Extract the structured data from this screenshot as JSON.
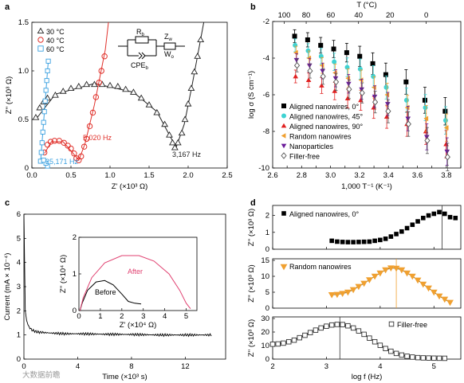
{
  "watermark": "大数据前瞻",
  "chart_data": [
    {
      "panel": "a",
      "type": "scatter",
      "xlabel": "Z' (×10³ Ω)",
      "ylabel": "Z'' (×10³ Ω)",
      "xlim": [
        0,
        2.5
      ],
      "ylim": [
        0,
        1.5
      ],
      "xticks": [
        "0.0",
        "0.5",
        "1.0",
        "1.5",
        "2.0",
        "2.5"
      ],
      "yticks": [
        "0",
        "0.5",
        "1.0",
        "1.5"
      ],
      "circuit_labels": [
        "R",
        "b",
        "Z",
        "w",
        "W",
        "o",
        "CPE",
        "b"
      ],
      "series": [
        {
          "name": "30 °C",
          "marker": "triangle",
          "color": "#222222",
          "points": [
            [
              0.05,
              0.52
            ],
            [
              0.1,
              0.62
            ],
            [
              0.15,
              0.68
            ],
            [
              0.2,
              0.72
            ],
            [
              0.3,
              0.75
            ],
            [
              0.4,
              0.79
            ],
            [
              0.5,
              0.82
            ],
            [
              0.6,
              0.84
            ],
            [
              0.7,
              0.86
            ],
            [
              0.8,
              0.86
            ],
            [
              0.9,
              0.86
            ],
            [
              1.0,
              0.85
            ],
            [
              1.1,
              0.84
            ],
            [
              1.2,
              0.81
            ],
            [
              1.3,
              0.78
            ],
            [
              1.4,
              0.72
            ],
            [
              1.5,
              0.65
            ],
            [
              1.6,
              0.57
            ],
            [
              1.7,
              0.45
            ],
            [
              1.76,
              0.34
            ],
            [
              1.8,
              0.26
            ],
            [
              1.83,
              0.21
            ],
            [
              1.87,
              0.26
            ],
            [
              1.92,
              0.36
            ],
            [
              1.96,
              0.5
            ],
            [
              2.0,
              0.66
            ],
            [
              2.04,
              0.82
            ],
            [
              2.08,
              0.99
            ],
            [
              2.12,
              1.15
            ],
            [
              2.16,
              1.32
            ]
          ]
        },
        {
          "name": "40 °C",
          "marker": "circle",
          "color": "#e0312b",
          "points": [
            [
              0.16,
              0.16
            ],
            [
              0.2,
              0.24
            ],
            [
              0.24,
              0.27
            ],
            [
              0.29,
              0.28
            ],
            [
              0.35,
              0.28
            ],
            [
              0.41,
              0.26
            ],
            [
              0.46,
              0.23
            ],
            [
              0.5,
              0.2
            ],
            [
              0.54,
              0.15
            ],
            [
              0.57,
              0.1
            ],
            [
              0.6,
              0.08
            ],
            [
              0.63,
              0.12
            ],
            [
              0.67,
              0.22
            ],
            [
              0.7,
              0.3
            ],
            [
              0.74,
              0.43
            ],
            [
              0.78,
              0.57
            ],
            [
              0.82,
              0.73
            ],
            [
              0.86,
              0.88
            ],
            [
              0.89,
              1.0
            ],
            [
              0.93,
              1.15
            ]
          ]
        },
        {
          "name": "60 °C",
          "marker": "square",
          "color": "#3aa0e0",
          "points": [
            [
              0.11,
              0.07
            ],
            [
              0.12,
              0.16
            ],
            [
              0.13,
              0.26
            ],
            [
              0.14,
              0.37
            ],
            [
              0.15,
              0.47
            ],
            [
              0.16,
              0.58
            ],
            [
              0.17,
              0.69
            ],
            [
              0.18,
              0.8
            ],
            [
              0.19,
              0.9
            ],
            [
              0.2,
              1.0
            ],
            [
              0.21,
              1.1
            ],
            [
              0.2,
              0.02
            ],
            [
              0.18,
              0.05
            ],
            [
              0.15,
              0.08
            ]
          ]
        }
      ],
      "annotations": [
        {
          "text": "5,020 Hz",
          "color": "#e0312b"
        },
        {
          "text": "3,167 Hz",
          "color": "#222222"
        },
        {
          "text": "25,171 Hz",
          "color": "#3aa0e0"
        }
      ]
    },
    {
      "panel": "b",
      "type": "scatter",
      "xlabel": "1,000 T⁻¹ (K⁻¹)",
      "ylabel": "log σ (S cm⁻¹)",
      "top_xlabel": "T (°C)",
      "top_xticks": [
        "100",
        "80",
        "60",
        "40",
        "20",
        "0"
      ],
      "top_tick_temps_c": [
        100,
        80,
        60,
        40,
        20,
        0
      ],
      "xlim": [
        2.6,
        3.9
      ],
      "ylim": [
        -10,
        -2
      ],
      "xticks": [
        "2.6",
        "2.7",
        "2.8",
        "2.9",
        "3.0",
        "3.1",
        "3.2",
        "3.3",
        "3.4",
        "3.5",
        "3.6",
        "3.7",
        "3.8",
        "3.9"
      ],
      "yticks": [
        "-2",
        "-4",
        "-6",
        "-8",
        "-10"
      ],
      "x": [
        2.76,
        2.85,
        2.94,
        3.03,
        3.12,
        3.21,
        3.3,
        3.39,
        3.53,
        3.66,
        3.8
      ],
      "series": [
        {
          "name": "Aligned nanowires, 0°",
          "marker": "square",
          "color": "#000000",
          "values": [
            -2.8,
            -3.0,
            -3.3,
            -3.5,
            -3.7,
            -3.9,
            -4.3,
            -4.9,
            -5.3,
            -6.3,
            -6.9
          ]
        },
        {
          "name": "Aligned nanowires, 45°",
          "marker": "circle",
          "color": "#3fd2d2",
          "values": [
            -3.3,
            -3.6,
            -3.9,
            -4.2,
            -4.5,
            -4.6,
            -5.0,
            -5.6,
            -6.3,
            -6.7,
            -7.4
          ]
        },
        {
          "name": "Aligned nanowires, 90°",
          "marker": "triangle",
          "color": "#e02020",
          "values": [
            -5.0,
            -5.2,
            -5.5,
            -5.8,
            -6.2,
            -6.3,
            -6.7,
            -7.2,
            -7.6,
            -8.0,
            -8.7
          ]
        },
        {
          "name": "Random nanowires",
          "marker": "triangle-left",
          "color": "#f0a030",
          "values": [
            -3.7,
            -4.0,
            -4.4,
            -4.8,
            -5.1,
            -5.2,
            -5.6,
            -6.0,
            -6.7,
            -7.3,
            -7.8
          ]
        },
        {
          "name": "Nanoparticles",
          "marker": "triangle-down",
          "color": "#6a1b9a",
          "values": [
            -4.1,
            -4.4,
            -4.7,
            -5.1,
            -5.4,
            -5.7,
            -6.1,
            -6.5,
            -7.3,
            -8.3,
            -9.1
          ]
        },
        {
          "name": "Filler-free",
          "marker": "diamond",
          "color": "#555555",
          "values": [
            -4.4,
            -4.7,
            -5.0,
            -5.3,
            -5.7,
            -5.9,
            -6.4,
            -6.9,
            -7.6,
            -8.5,
            -9.4
          ]
        }
      ]
    },
    {
      "panel": "c",
      "type": "line",
      "xlabel": "Time (×10³ s)",
      "ylabel": "Current (mA × 10⁻⁴)",
      "xlim": [
        0,
        15
      ],
      "ylim": [
        0,
        6
      ],
      "xticks": [
        "0",
        "4",
        "8",
        "12"
      ],
      "yticks": [
        "0",
        "1",
        "2",
        "3",
        "4",
        "5",
        "6"
      ],
      "series": [
        {
          "name": "",
          "points": [
            [
              0,
              6.0
            ],
            [
              0.1,
              2.0
            ],
            [
              0.2,
              1.6
            ],
            [
              0.35,
              1.35
            ],
            [
              0.6,
              1.2
            ],
            [
              1,
              1.12
            ],
            [
              2,
              1.08
            ],
            [
              3,
              1.05
            ],
            [
              4,
              1.05
            ],
            [
              6,
              1.03
            ],
            [
              8,
              1.02
            ],
            [
              10,
              1.0
            ],
            [
              12,
              1.0
            ],
            [
              14,
              1.0
            ]
          ]
        }
      ],
      "inset": {
        "type": "line",
        "xlabel": "Z' (×10⁴ Ω)",
        "ylabel": "Z'' (×10⁴ Ω)",
        "xlim": [
          0,
          5.5
        ],
        "ylim": [
          0,
          2
        ],
        "xticks": [
          "0",
          "1",
          "2",
          "3",
          "4",
          "5"
        ],
        "yticks": [
          "0",
          "1",
          "2"
        ],
        "series": [
          {
            "name": "Before",
            "color": "#000000",
            "points": [
              [
                0.05,
                0
              ],
              [
                0.15,
                0.2
              ],
              [
                0.4,
                0.55
              ],
              [
                0.8,
                0.78
              ],
              [
                1.2,
                0.82
              ],
              [
                1.6,
                0.7
              ],
              [
                2.0,
                0.45
              ],
              [
                2.3,
                0.25
              ],
              [
                2.6,
                0.2
              ],
              [
                2.9,
                0.18
              ]
            ]
          },
          {
            "name": "After",
            "color": "#e04070",
            "points": [
              [
                0.05,
                0
              ],
              [
                0.2,
                0.35
              ],
              [
                0.6,
                0.9
              ],
              [
                1.2,
                1.3
              ],
              [
                2.0,
                1.5
              ],
              [
                2.8,
                1.5
              ],
              [
                3.5,
                1.35
              ],
              [
                4.2,
                1.0
              ],
              [
                4.7,
                0.55
              ],
              [
                5.0,
                0.2
              ],
              [
                5.2,
                0.05
              ]
            ]
          }
        ]
      }
    },
    {
      "panel": "d",
      "type": "scatter",
      "xlabel": "log f (Hz)",
      "xlim": [
        2,
        5.5
      ],
      "xticks": [
        "2",
        "3",
        "4",
        "5"
      ],
      "subplots": [
        {
          "name": "Aligned nanowires, 0°",
          "marker": "square",
          "color": "#000000",
          "ylabel": "Z'' (×10³ Ω)",
          "ylim": [
            0,
            2.5
          ],
          "yticks": [
            "0",
            "1",
            "2"
          ],
          "vline_x": 5.15,
          "x": [
            3.1,
            3.2,
            3.3,
            3.4,
            3.5,
            3.6,
            3.7,
            3.8,
            3.9,
            4.0,
            4.1,
            4.2,
            4.3,
            4.4,
            4.5,
            4.6,
            4.7,
            4.8,
            4.9,
            5.0,
            5.1,
            5.2,
            5.3,
            5.4
          ],
          "values": [
            0.5,
            0.45,
            0.43,
            0.42,
            0.42,
            0.43,
            0.44,
            0.45,
            0.5,
            0.55,
            0.62,
            0.75,
            0.9,
            1.05,
            1.25,
            1.45,
            1.65,
            1.85,
            2.0,
            2.1,
            2.2,
            2.1,
            1.9,
            1.85
          ]
        },
        {
          "name": "Random nanowires",
          "marker": "triangle-down",
          "color": "#f0a030",
          "ylabel": "Z'' (×10³ Ω)",
          "ylim": [
            0,
            15
          ],
          "yticks": [
            "0",
            "5",
            "10",
            "15"
          ],
          "vline_x": 4.3,
          "x": [
            3.1,
            3.2,
            3.3,
            3.4,
            3.5,
            3.6,
            3.7,
            3.8,
            3.9,
            4.0,
            4.1,
            4.2,
            4.3,
            4.4,
            4.5,
            4.6,
            4.7,
            4.8,
            4.9,
            5.0,
            5.1,
            5.2,
            5.3
          ],
          "values": [
            4.2,
            4.3,
            4.6,
            5.0,
            5.8,
            6.8,
            7.8,
            8.9,
            10.0,
            11.0,
            12.0,
            12.6,
            12.5,
            12.0,
            11.0,
            10.0,
            8.8,
            7.5,
            6.3,
            5.0,
            3.8,
            2.8,
            1.8
          ]
        },
        {
          "name": "Filler-free",
          "marker": "square-open",
          "color": "#333333",
          "ylabel": "Z'' (×10³ Ω)",
          "ylim": [
            0,
            30
          ],
          "yticks": [
            "0",
            "10",
            "20",
            "30"
          ],
          "vline_x": 3.25,
          "x": [
            2.0,
            2.1,
            2.2,
            2.3,
            2.4,
            2.5,
            2.6,
            2.7,
            2.8,
            2.9,
            3.0,
            3.1,
            3.2,
            3.3,
            3.4,
            3.5,
            3.6,
            3.7,
            3.8,
            3.9,
            4.0,
            4.1,
            4.2,
            4.3,
            4.4,
            4.5,
            4.6,
            4.7,
            4.8,
            4.9,
            5.0,
            5.1,
            5.2
          ],
          "values": [
            11.0,
            11.2,
            11.8,
            12.8,
            14.0,
            15.8,
            17.6,
            19.6,
            21.4,
            23.0,
            24.3,
            25.2,
            25.6,
            25.5,
            24.6,
            23.0,
            20.8,
            18.3,
            15.5,
            12.8,
            10.2,
            7.8,
            5.8,
            4.2,
            3.0,
            2.1,
            1.5,
            1.1,
            0.9,
            0.8,
            0.7,
            0.65,
            0.6
          ]
        }
      ]
    }
  ]
}
